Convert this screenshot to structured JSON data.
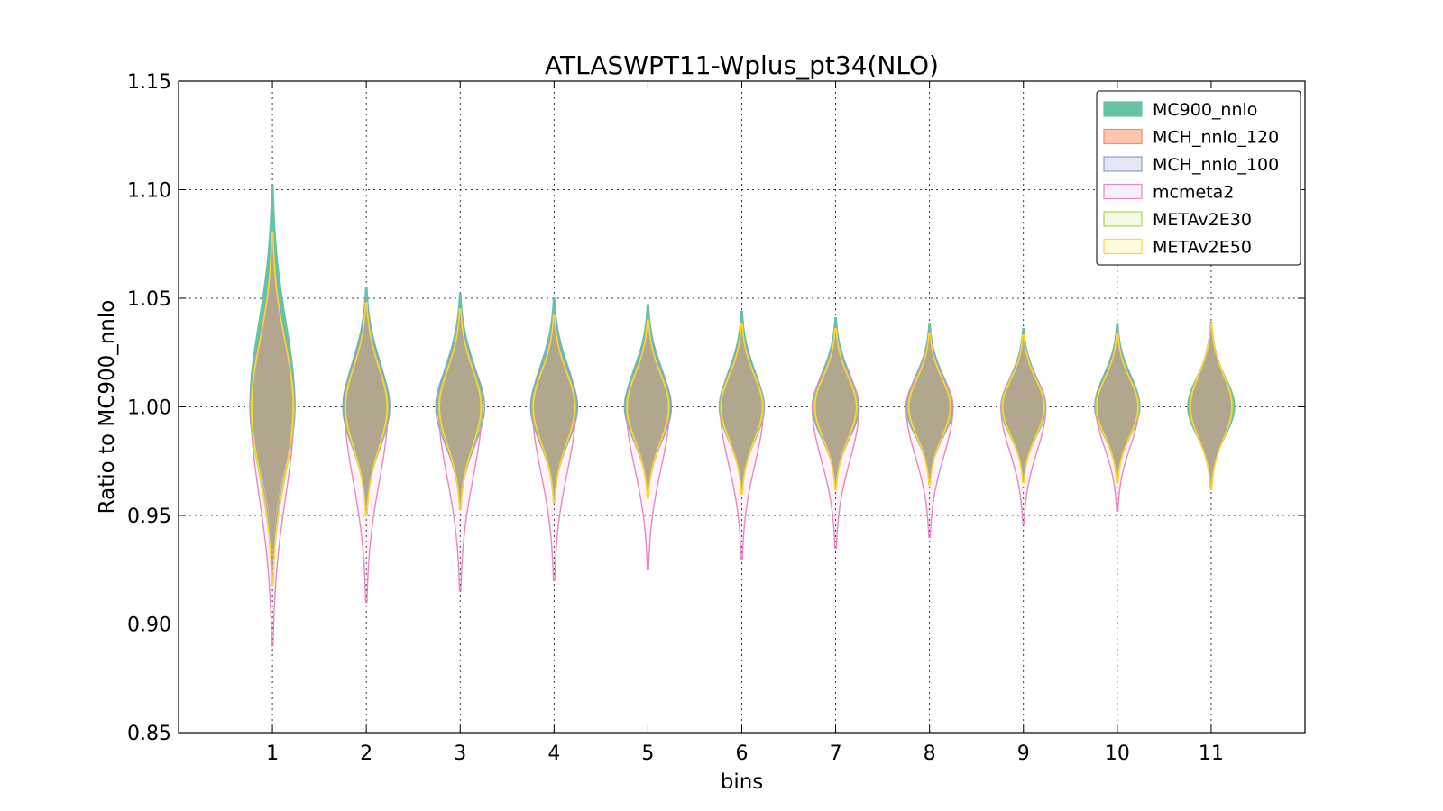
{
  "chart_data": {
    "type": "violin",
    "title": "ATLASWPT11-Wplus_pt34(NLO)",
    "xlabel": "bins",
    "ylabel": "Ratio to MC900_nnlo",
    "ylim": [
      0.85,
      1.15
    ],
    "yticks": [
      "0.85",
      "0.90",
      "0.95",
      "1.00",
      "1.05",
      "1.10",
      "1.15"
    ],
    "xlim": [
      0,
      12
    ],
    "categories": [
      "1",
      "2",
      "3",
      "4",
      "5",
      "6",
      "7",
      "8",
      "9",
      "10",
      "11"
    ],
    "grid": true,
    "legend_position": "top-right",
    "series": [
      {
        "name": "MC900_nnlo",
        "color": "#66c2a5",
        "fill_opacity": 1.0,
        "ymin": [
          0.935,
          0.955,
          0.955,
          0.958,
          0.96,
          0.962,
          0.965,
          0.968,
          0.968,
          0.968,
          0.965
        ],
        "ymax": [
          1.102,
          1.055,
          1.052,
          1.05,
          1.047,
          1.044,
          1.041,
          1.038,
          1.036,
          1.038,
          1.036
        ],
        "halfwidth": [
          0.24,
          0.24,
          0.24,
          0.24,
          0.24,
          0.23,
          0.24,
          0.24,
          0.23,
          0.24,
          0.25
        ]
      },
      {
        "name": "MCH_nnlo_120",
        "color": "#fc8d62",
        "fill_opacity": 0.5,
        "ymin": [
          0.92,
          0.95,
          0.953,
          0.957,
          0.959,
          0.961,
          0.963,
          0.965,
          0.966,
          0.966,
          0.962
        ],
        "ymax": [
          1.075,
          1.048,
          1.045,
          1.042,
          1.04,
          1.038,
          1.036,
          1.034,
          1.033,
          1.034,
          1.038
        ],
        "halfwidth": [
          0.22,
          0.22,
          0.22,
          0.22,
          0.22,
          0.22,
          0.22,
          0.22,
          0.22,
          0.22,
          0.22
        ]
      },
      {
        "name": "MCH_nnlo_100",
        "color": "#8da0cb",
        "fill_opacity": 0.25,
        "ymin": [
          0.925,
          0.952,
          0.954,
          0.957,
          0.959,
          0.961,
          0.963,
          0.965,
          0.966,
          0.966,
          0.963
        ],
        "ymax": [
          1.078,
          1.05,
          1.046,
          1.044,
          1.041,
          1.039,
          1.037,
          1.035,
          1.034,
          1.035,
          1.039
        ],
        "halfwidth": [
          0.24,
          0.25,
          0.26,
          0.25,
          0.25,
          0.24,
          0.25,
          0.25,
          0.24,
          0.24,
          0.22
        ]
      },
      {
        "name": "mcmeta2",
        "color": "#e78ac3",
        "fill_opacity": 0.1,
        "ymin": [
          0.89,
          0.91,
          0.915,
          0.92,
          0.925,
          0.93,
          0.935,
          0.94,
          0.946,
          0.952,
          0.963
        ],
        "ymax": [
          1.075,
          1.048,
          1.045,
          1.042,
          1.04,
          1.038,
          1.036,
          1.034,
          1.033,
          1.034,
          1.038
        ],
        "halfwidth": [
          0.23,
          0.23,
          0.23,
          0.23,
          0.23,
          0.23,
          0.25,
          0.25,
          0.24,
          0.23,
          0.22
        ]
      },
      {
        "name": "METAv2E30",
        "color": "#a6d854",
        "fill_opacity": 0.05,
        "ymin": [
          0.918,
          0.95,
          0.953,
          0.956,
          0.958,
          0.96,
          0.962,
          0.964,
          0.965,
          0.965,
          0.963
        ],
        "ymax": [
          1.078,
          1.048,
          1.045,
          1.042,
          1.04,
          1.038,
          1.036,
          1.034,
          1.033,
          1.034,
          1.038
        ],
        "halfwidth": [
          0.23,
          0.23,
          0.23,
          0.23,
          0.23,
          0.23,
          0.23,
          0.23,
          0.23,
          0.23,
          0.23
        ]
      },
      {
        "name": "METAv2E50",
        "color": "#ffd92f",
        "fill_opacity": 0.05,
        "ymin": [
          0.918,
          0.95,
          0.953,
          0.956,
          0.958,
          0.96,
          0.962,
          0.964,
          0.965,
          0.965,
          0.962
        ],
        "ymax": [
          1.08,
          1.048,
          1.045,
          1.042,
          1.04,
          1.038,
          1.036,
          1.034,
          1.033,
          1.034,
          1.038
        ],
        "halfwidth": [
          0.22,
          0.22,
          0.22,
          0.22,
          0.22,
          0.22,
          0.22,
          0.22,
          0.22,
          0.22,
          0.22
        ]
      }
    ]
  }
}
